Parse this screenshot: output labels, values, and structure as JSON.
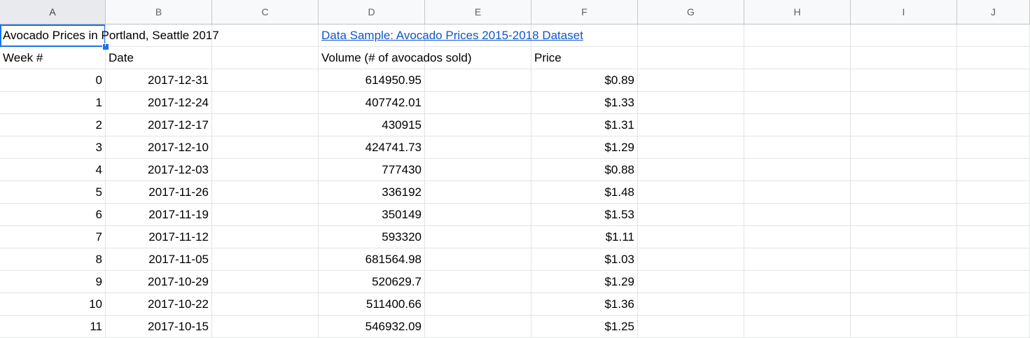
{
  "columns": [
    "A",
    "B",
    "C",
    "D",
    "E",
    "F",
    "G",
    "H",
    "I",
    "J"
  ],
  "selected_cell": "A1",
  "row1": {
    "title": "Avocado Prices in Portland, Seattle 2017",
    "link": "Data Sample: Avocado Prices 2015-2018 Dataset"
  },
  "headers": {
    "week": "Week #",
    "date": "Date",
    "volume": "Volume (# of avocados sold)",
    "price": "Price"
  },
  "rows": [
    {
      "week": "0",
      "date": "2017-12-31",
      "volume": "614950.95",
      "price": "$0.89"
    },
    {
      "week": "1",
      "date": "2017-12-24",
      "volume": "407742.01",
      "price": "$1.33"
    },
    {
      "week": "2",
      "date": "2017-12-17",
      "volume": "430915",
      "price": "$1.31"
    },
    {
      "week": "3",
      "date": "2017-12-10",
      "volume": "424741.73",
      "price": "$1.29"
    },
    {
      "week": "4",
      "date": "2017-12-03",
      "volume": "777430",
      "price": "$0.88"
    },
    {
      "week": "5",
      "date": "2017-11-26",
      "volume": "336192",
      "price": "$1.48"
    },
    {
      "week": "6",
      "date": "2017-11-19",
      "volume": "350149",
      "price": "$1.53"
    },
    {
      "week": "7",
      "date": "2017-11-12",
      "volume": "593320",
      "price": "$1.11"
    },
    {
      "week": "8",
      "date": "2017-11-05",
      "volume": "681564.98",
      "price": "$1.03"
    },
    {
      "week": "9",
      "date": "2017-10-29",
      "volume": "520629.7",
      "price": "$1.29"
    },
    {
      "week": "10",
      "date": "2017-10-22",
      "volume": "511400.66",
      "price": "$1.36"
    },
    {
      "week": "11",
      "date": "2017-10-15",
      "volume": "546932.09",
      "price": "$1.25"
    }
  ],
  "colors": {
    "selection": "#1a73e8",
    "link": "#1155cc",
    "header_bg": "#f8f9fa"
  }
}
